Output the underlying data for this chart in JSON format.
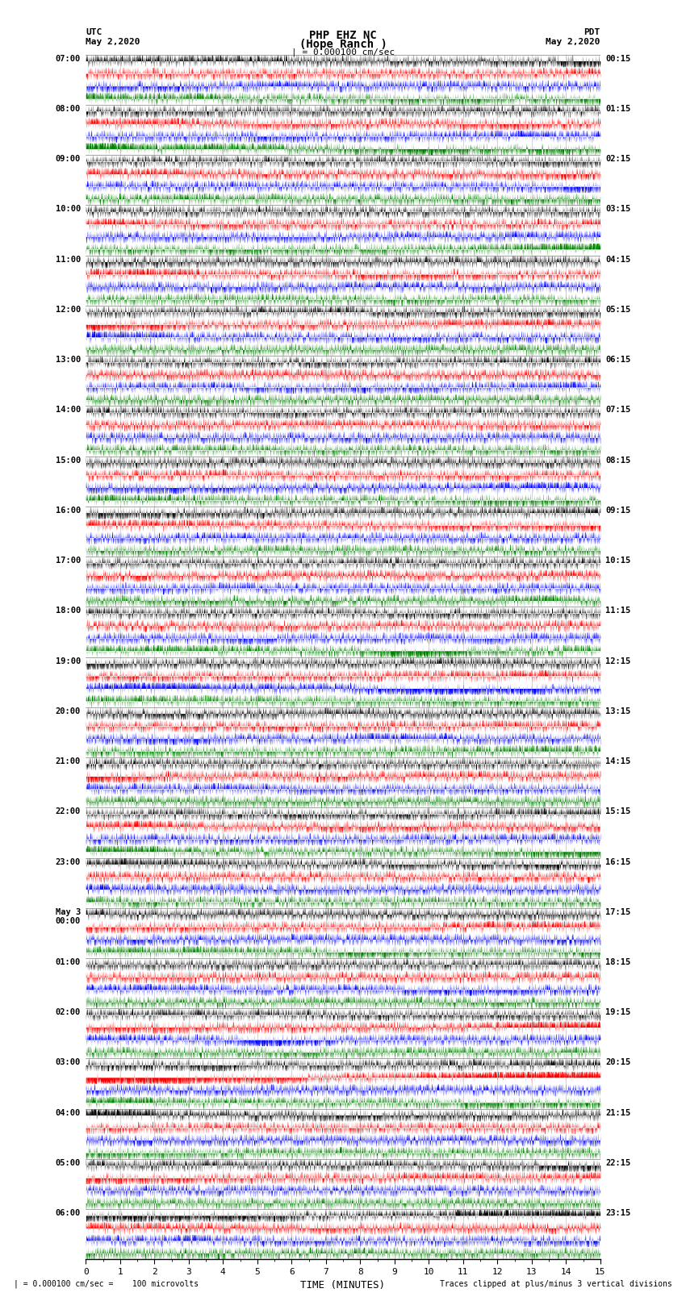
{
  "title_line1": "PHP EHZ NC",
  "title_line2": "(Hope Ranch )",
  "title_line3": "| = 0.000100 cm/sec",
  "label_utc": "UTC",
  "label_pdt": "PDT",
  "date_left": "May 2,2020",
  "date_right": "May 2,2020",
  "xlabel": "TIME (MINUTES)",
  "footer_left": "| = 0.000100 cm/sec =    100 microvolts",
  "footer_right": "Traces clipped at plus/minus 3 vertical divisions",
  "left_labels_utc": [
    "07:00",
    "08:00",
    "09:00",
    "10:00",
    "11:00",
    "12:00",
    "13:00",
    "14:00",
    "15:00",
    "16:00",
    "17:00",
    "18:00",
    "19:00",
    "20:00",
    "21:00",
    "22:00",
    "23:00",
    "May 3\n00:00",
    "01:00",
    "02:00",
    "03:00",
    "04:00",
    "05:00",
    "06:00"
  ],
  "right_labels_pdt": [
    "00:15",
    "01:15",
    "02:15",
    "03:15",
    "04:15",
    "05:15",
    "06:15",
    "07:15",
    "08:15",
    "09:15",
    "10:15",
    "11:15",
    "12:15",
    "13:15",
    "14:15",
    "15:15",
    "16:15",
    "17:15",
    "18:15",
    "19:15",
    "20:15",
    "21:15",
    "22:15",
    "23:15"
  ],
  "trace_colors": [
    "black",
    "red",
    "blue",
    "green"
  ],
  "bg_color": "white",
  "seed": 42,
  "num_points": 3000,
  "x_ticks": [
    0,
    1,
    2,
    3,
    4,
    5,
    6,
    7,
    8,
    9,
    10,
    11,
    12,
    13,
    14,
    15
  ]
}
